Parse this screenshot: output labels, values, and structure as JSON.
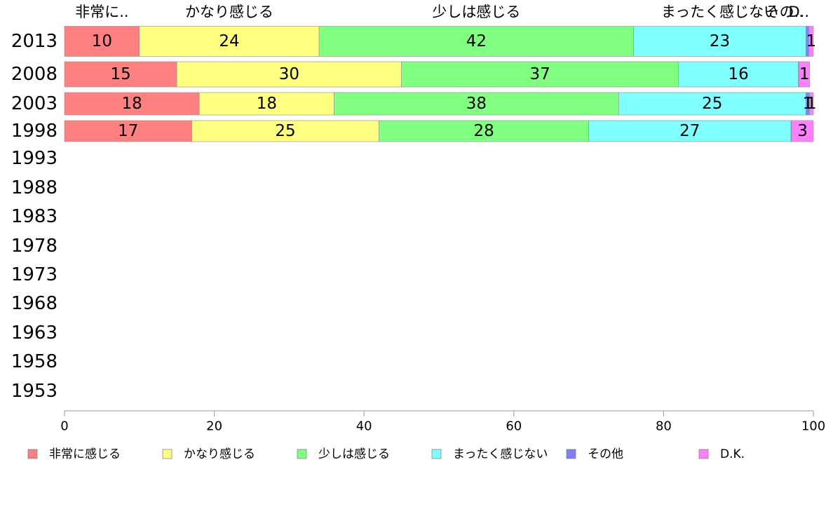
{
  "chart_data": {
    "type": "bar",
    "orientation": "horizontal",
    "stacked": true,
    "categories": [
      "2013",
      "2008",
      "2003",
      "1998",
      "1993",
      "1988",
      "1983",
      "1978",
      "1973",
      "1968",
      "1963",
      "1958",
      "1953"
    ],
    "series": [
      {
        "name": "非常に感じる",
        "color": "#ff8080",
        "values": [
          10,
          15,
          18,
          17,
          null,
          null,
          null,
          null,
          null,
          null,
          null,
          null,
          null
        ]
      },
      {
        "name": "かなり感じる",
        "color": "#ffff80",
        "values": [
          24,
          30,
          18,
          25,
          null,
          null,
          null,
          null,
          null,
          null,
          null,
          null,
          null
        ]
      },
      {
        "name": "少しは感じる",
        "color": "#80ff80",
        "values": [
          42,
          37,
          38,
          28,
          null,
          null,
          null,
          null,
          null,
          null,
          null,
          null,
          null
        ]
      },
      {
        "name": "まったく感じない",
        "color": "#80ffff",
        "values": [
          23,
          16,
          25,
          27,
          null,
          null,
          null,
          null,
          null,
          null,
          null,
          null,
          null
        ]
      },
      {
        "name": "その他",
        "color": "#8080ff",
        "values": [
          0.4,
          0.1,
          0.5,
          0.1,
          null,
          null,
          null,
          null,
          null,
          null,
          null,
          null,
          null
        ]
      },
      {
        "name": "D.K.",
        "color": "#ff80ff",
        "values": [
          0.6,
          1.4,
          0.5,
          2.9,
          null,
          null,
          null,
          null,
          null,
          null,
          null,
          null,
          null
        ]
      }
    ],
    "data_labels": [
      [
        "10",
        "24",
        "42",
        "23",
        "",
        "1"
      ],
      [
        "15",
        "30",
        "37",
        "16",
        "",
        "1"
      ],
      [
        "18",
        "18",
        "38",
        "25",
        "1",
        "1"
      ],
      [
        "17",
        "25",
        "28",
        "27",
        "",
        "3"
      ]
    ],
    "top_labels": [
      "非常に..",
      "かなり感じる",
      "少しは感じる",
      "まったく感じない",
      "その..",
      "D.."
    ],
    "xlim": [
      0,
      100
    ],
    "xticks": [
      0,
      20,
      40,
      60,
      80,
      100
    ],
    "title": "",
    "xlabel": "",
    "ylabel": "",
    "grid": false,
    "legend_position": "bottom"
  }
}
